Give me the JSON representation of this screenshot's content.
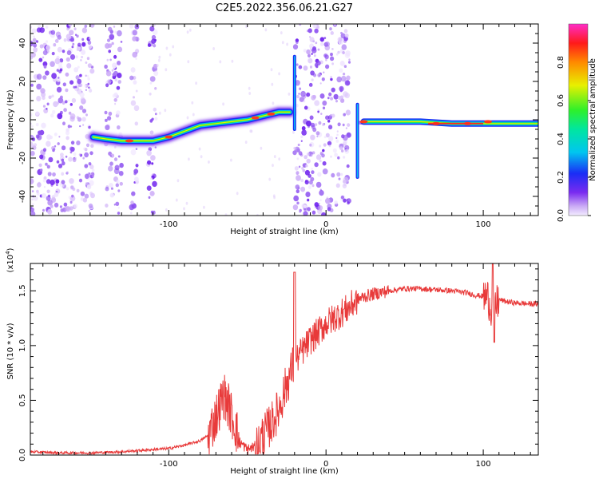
{
  "title": "C2E5.2022.356.06.21.G27",
  "colors": {
    "snr_line": "#e83a3a",
    "frame": "#000000",
    "scatter_violet": "#7a2cf0"
  },
  "chart_data": [
    {
      "type": "heatmap",
      "title": "C2E5.2022.356.06.21.G27",
      "xlabel": "Height of straight line (km)",
      "ylabel": "Frequency (Hz)",
      "xlim": [
        -188,
        135
      ],
      "ylim": [
        -50,
        50
      ],
      "xticks": [
        -100,
        0,
        100
      ],
      "yticks": [
        -40,
        -20,
        0,
        20,
        40
      ],
      "colorbar": {
        "label": "Normalized spectral amplitude",
        "range": [
          0.0,
          1.0
        ],
        "ticks": [
          "0.0",
          "0.2",
          "0.4",
          "0.6",
          "0.8"
        ],
        "colormap": "rainbow (white-violet-blue-cyan-green-yellow-red-magenta)"
      },
      "ridge": [
        {
          "x": -148,
          "y": -9
        },
        {
          "x": -140,
          "y": -10
        },
        {
          "x": -130,
          "y": -11
        },
        {
          "x": -120,
          "y": -11
        },
        {
          "x": -110,
          "y": -11
        },
        {
          "x": -100,
          "y": -9
        },
        {
          "x": -90,
          "y": -6
        },
        {
          "x": -80,
          "y": -3
        },
        {
          "x": -70,
          "y": -2
        },
        {
          "x": -60,
          "y": -1
        },
        {
          "x": -50,
          "y": 0
        },
        {
          "x": -40,
          "y": 2
        },
        {
          "x": -30,
          "y": 4
        },
        {
          "x": -23,
          "y": 4
        },
        {
          "x": 20,
          "y": 4
        },
        {
          "x": 24,
          "y": -1
        },
        {
          "x": 40,
          "y": -1
        },
        {
          "x": 60,
          "y": -1
        },
        {
          "x": 80,
          "y": -2
        },
        {
          "x": 100,
          "y": -2
        },
        {
          "x": 120,
          "y": -2
        },
        {
          "x": 135,
          "y": -2
        }
      ],
      "noise_bands": [
        [
          -188,
          -148
        ],
        [
          -140,
          -130
        ],
        [
          -124,
          -120
        ],
        [
          -113,
          -108
        ],
        [
          -20,
          15
        ]
      ]
    },
    {
      "type": "line",
      "xlabel": "Height of straight line (km)",
      "ylabel": "SNR (10 * v/v)",
      "yscale_label": "(x10",
      "yscale_exp": "4",
      "yscale_close": ")",
      "xlim": [
        -188,
        135
      ],
      "ylim": [
        0,
        1.75
      ],
      "xticks": [
        -100,
        0,
        100
      ],
      "yticks": [
        "0.0",
        "0.5",
        "1.0",
        "1.5"
      ],
      "series": [
        {
          "values": [
            [
              -188,
              0.03
            ],
            [
              -170,
              0.02
            ],
            [
              -150,
              0.02
            ],
            [
              -130,
              0.03
            ],
            [
              -120,
              0.04
            ],
            [
              -110,
              0.05
            ],
            [
              -100,
              0.06
            ],
            [
              -90,
              0.09
            ],
            [
              -80,
              0.13
            ],
            [
              -75,
              0.18
            ],
            [
              -70,
              0.35
            ],
            [
              -65,
              0.55
            ],
            [
              -62,
              0.45
            ],
            [
              -58,
              0.28
            ],
            [
              -55,
              0.12
            ],
            [
              -50,
              0.05
            ],
            [
              -45,
              0.08
            ],
            [
              -40,
              0.18
            ],
            [
              -35,
              0.28
            ],
            [
              -30,
              0.42
            ],
            [
              -25,
              0.65
            ],
            [
              -20,
              0.85
            ],
            [
              -15,
              0.95
            ],
            [
              -10,
              1.05
            ],
            [
              -5,
              1.12
            ],
            [
              0,
              1.2
            ],
            [
              5,
              1.25
            ],
            [
              10,
              1.3
            ],
            [
              15,
              1.35
            ],
            [
              20,
              1.42
            ],
            [
              25,
              1.45
            ],
            [
              30,
              1.47
            ],
            [
              40,
              1.5
            ],
            [
              50,
              1.52
            ],
            [
              60,
              1.52
            ],
            [
              70,
              1.51
            ],
            [
              80,
              1.5
            ],
            [
              90,
              1.48
            ],
            [
              95,
              1.46
            ],
            [
              100,
              1.45
            ],
            [
              103,
              1.44
            ],
            [
              106,
              1.3
            ],
            [
              110,
              1.42
            ],
            [
              115,
              1.4
            ],
            [
              120,
              1.39
            ],
            [
              130,
              1.38
            ],
            [
              135,
              1.38
            ]
          ]
        }
      ]
    }
  ]
}
